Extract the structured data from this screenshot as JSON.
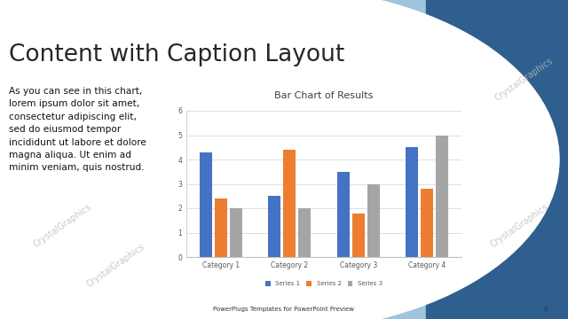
{
  "slide": {
    "title": "Content with Caption Layout",
    "caption_lines": [
      "As you can see in this chart,",
      "lorem ipsum dolor sit amet,",
      "consectetur adipiscing elit,",
      "sed do eiusmod tempor",
      "incididunt ut labore et dolore",
      "magna aliqua. Ut enim ad",
      "minim veniam, quis nostrud."
    ],
    "footer": "PowerPlugs Templates for PowerPoint Preview",
    "page_number": 8,
    "watermark": "CrystalGraphics"
  },
  "chart_data": {
    "type": "bar",
    "title": "Bar Chart of Results",
    "categories": [
      "Category 1",
      "Category 2",
      "Category 3",
      "Category 4"
    ],
    "series": [
      {
        "name": "Series 1",
        "color": "#4472c4",
        "values": [
          4.3,
          2.5,
          3.5,
          4.5
        ]
      },
      {
        "name": "Series 2",
        "color": "#ed7d31",
        "values": [
          2.4,
          4.4,
          1.8,
          2.8
        ]
      },
      {
        "name": "Series 3",
        "color": "#a5a5a5",
        "values": [
          2,
          2,
          3,
          5
        ]
      }
    ],
    "ylim": [
      0,
      6
    ],
    "yticks": [
      0,
      1,
      2,
      3,
      4,
      5,
      6
    ],
    "grid": true,
    "legend": "lower center"
  }
}
